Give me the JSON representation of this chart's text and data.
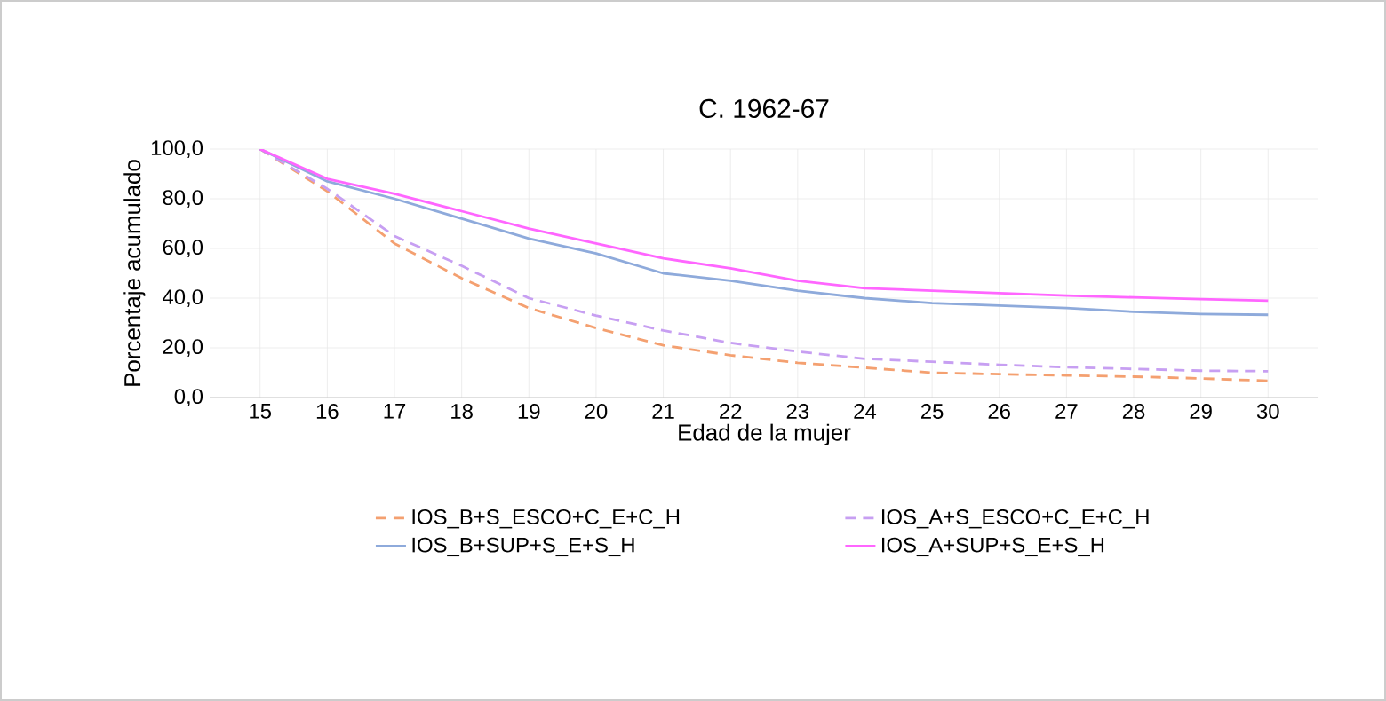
{
  "chart_data": {
    "type": "line",
    "title": "C. 1962-67",
    "xlabel": "Edad de la mujer",
    "ylabel": "Porcentaje acumulado",
    "categories": [
      "15",
      "16",
      "17",
      "18",
      "19",
      "20",
      "21",
      "22",
      "23",
      "24",
      "25",
      "26",
      "27",
      "28",
      "29",
      "30"
    ],
    "ylim": [
      0,
      100
    ],
    "yticks": [
      {
        "value": 0,
        "label": "0,0"
      },
      {
        "value": 20,
        "label": "20,0"
      },
      {
        "value": 40,
        "label": "40,0"
      },
      {
        "value": 60,
        "label": "60,0"
      },
      {
        "value": 80,
        "label": "80,0"
      },
      {
        "value": 100,
        "label": "100,0"
      }
    ],
    "grid": true,
    "legend": "bottom",
    "marker": "none",
    "series": [
      {
        "name": "IOS_B+S_ESCO+C_E+C_H",
        "color": "#f4a070",
        "line_style": "dashed",
        "values": [
          100,
          83,
          62,
          48,
          36,
          28,
          21,
          17,
          14,
          12,
          10,
          9.4,
          8.9,
          8.4,
          7.7,
          6.7
        ]
      },
      {
        "name": "IOS_A+S_ESCO+C_E+C_H",
        "color": "#c79ff2",
        "line_style": "dashed",
        "values": [
          100,
          84,
          65,
          53,
          40,
          33,
          27,
          22,
          18.5,
          15.6,
          14.4,
          13.2,
          12.2,
          11.5,
          10.8,
          10.6
        ]
      },
      {
        "name": "IOS_B+SUP+S_E+S_H",
        "color": "#8eaadb",
        "line_style": "solid",
        "values": [
          100,
          87,
          80,
          72,
          64,
          58,
          50,
          47,
          43,
          40,
          38,
          37,
          36,
          34.5,
          33.6,
          33.3
        ]
      },
      {
        "name": "IOS_A+SUP+S_E+S_H",
        "color": "#ff66ff",
        "line_style": "solid",
        "values": [
          100,
          88,
          82,
          75,
          68,
          62,
          56,
          52,
          47,
          44,
          43,
          42,
          41,
          40.3,
          39.6,
          39
        ]
      }
    ]
  }
}
